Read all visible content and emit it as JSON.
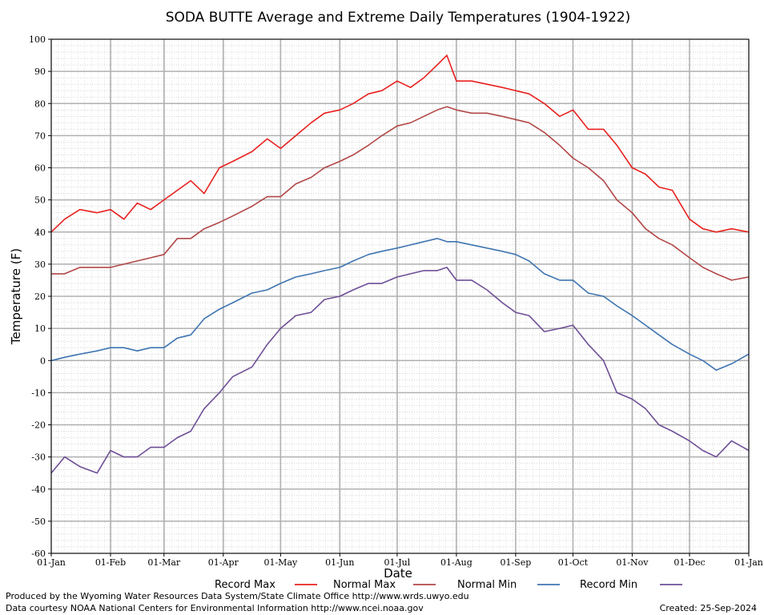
{
  "chart_data": {
    "type": "line",
    "title": "SODA BUTTE Average and Extreme Daily Temperatures (1904-1922)",
    "xlabel": "Date",
    "ylabel": "Temperature (F)",
    "ylim": [
      -60,
      100
    ],
    "y_ticks": [
      100,
      90,
      80,
      70,
      60,
      50,
      40,
      30,
      20,
      10,
      0,
      -10,
      -20,
      -30,
      -40,
      -50,
      -60
    ],
    "x_ticks": [
      {
        "label": "01-Jan",
        "day": 0
      },
      {
        "label": "01-Feb",
        "day": 31
      },
      {
        "label": "01-Mar",
        "day": 59
      },
      {
        "label": "01-Apr",
        "day": 90
      },
      {
        "label": "01-May",
        "day": 120
      },
      {
        "label": "01-Jun",
        "day": 151
      },
      {
        "label": "01-Jul",
        "day": 181
      },
      {
        "label": "01-Aug",
        "day": 212
      },
      {
        "label": "01-Sep",
        "day": 243
      },
      {
        "label": "01-Oct",
        "day": 273
      },
      {
        "label": "01-Nov",
        "day": 304
      },
      {
        "label": "01-Dec",
        "day": 334
      },
      {
        "label": "01-Jan",
        "day": 365
      }
    ],
    "grid": true,
    "legend_position": "bottom",
    "series": [
      {
        "name": "Record Max",
        "color": "#e8211f",
        "x": [
          0,
          7,
          15,
          24,
          31,
          38,
          45,
          52,
          59,
          66,
          73,
          80,
          88,
          95,
          105,
          113,
          120,
          128,
          136,
          143,
          151,
          158,
          166,
          173,
          181,
          188,
          195,
          202,
          207,
          212,
          220,
          228,
          236,
          243,
          250,
          258,
          266,
          273,
          281,
          289,
          296,
          304,
          311,
          318,
          325,
          334,
          341,
          348,
          356,
          365
        ],
        "y": [
          40,
          44,
          47,
          46,
          47,
          44,
          49,
          47,
          50,
          53,
          56,
          52,
          60,
          62,
          65,
          69,
          66,
          70,
          74,
          77,
          78,
          80,
          83,
          84,
          87,
          85,
          88,
          92,
          95,
          87,
          87,
          86,
          85,
          84,
          83,
          80,
          76,
          78,
          72,
          72,
          67,
          60,
          58,
          54,
          53,
          44,
          41,
          40,
          41,
          40
        ]
      },
      {
        "name": "Normal Max",
        "color": "#b24747",
        "x": [
          0,
          7,
          15,
          24,
          31,
          38,
          45,
          52,
          59,
          66,
          73,
          80,
          88,
          95,
          105,
          113,
          120,
          128,
          136,
          143,
          151,
          158,
          166,
          173,
          181,
          188,
          195,
          202,
          207,
          212,
          220,
          228,
          236,
          243,
          250,
          258,
          266,
          273,
          281,
          289,
          296,
          304,
          311,
          318,
          325,
          334,
          341,
          348,
          356,
          365
        ],
        "y": [
          27,
          27,
          29,
          29,
          29,
          30,
          31,
          32,
          33,
          38,
          38,
          41,
          43,
          45,
          48,
          51,
          51,
          55,
          57,
          60,
          62,
          64,
          67,
          70,
          73,
          74,
          76,
          78,
          79,
          78,
          77,
          77,
          76,
          75,
          74,
          71,
          67,
          63,
          60,
          56,
          50,
          46,
          41,
          38,
          36,
          32,
          29,
          27,
          25,
          26
        ]
      },
      {
        "name": "Normal Min",
        "color": "#3f75b1",
        "x": [
          0,
          7,
          15,
          24,
          31,
          38,
          45,
          52,
          59,
          66,
          73,
          80,
          88,
          95,
          105,
          113,
          120,
          128,
          136,
          143,
          151,
          158,
          166,
          173,
          181,
          188,
          195,
          202,
          207,
          212,
          220,
          228,
          236,
          243,
          250,
          258,
          266,
          273,
          281,
          289,
          296,
          304,
          311,
          318,
          325,
          334,
          341,
          348,
          356,
          365
        ],
        "y": [
          0,
          1,
          2,
          3,
          4,
          4,
          3,
          4,
          4,
          7,
          8,
          13,
          16,
          18,
          21,
          22,
          24,
          26,
          27,
          28,
          29,
          31,
          33,
          34,
          35,
          36,
          37,
          38,
          37,
          37,
          36,
          35,
          34,
          33,
          31,
          27,
          25,
          25,
          21,
          20,
          17,
          14,
          11,
          8,
          5,
          2,
          0,
          -3,
          -1,
          2
        ]
      },
      {
        "name": "Record Min",
        "color": "#6d4f97",
        "x": [
          0,
          7,
          15,
          24,
          31,
          38,
          45,
          52,
          59,
          66,
          73,
          80,
          88,
          95,
          105,
          113,
          120,
          128,
          136,
          143,
          151,
          158,
          166,
          173,
          181,
          188,
          195,
          202,
          207,
          212,
          220,
          228,
          236,
          243,
          250,
          258,
          266,
          273,
          281,
          289,
          296,
          304,
          311,
          318,
          325,
          334,
          341,
          348,
          356,
          365
        ],
        "y": [
          -35,
          -30,
          -33,
          -35,
          -28,
          -30,
          -30,
          -27,
          -27,
          -24,
          -22,
          -15,
          -10,
          -5,
          -2,
          5,
          10,
          14,
          15,
          19,
          20,
          22,
          24,
          24,
          26,
          27,
          28,
          28,
          29,
          25,
          25,
          22,
          18,
          15,
          14,
          9,
          10,
          11,
          5,
          0,
          -10,
          -12,
          -15,
          -20,
          -22,
          -25,
          -28,
          -30,
          -25,
          -28
        ]
      }
    ]
  },
  "legend": {
    "items": [
      {
        "label": "Record Max",
        "color": "#e8211f"
      },
      {
        "label": "Normal Max",
        "color": "#b24747"
      },
      {
        "label": "Normal Min",
        "color": "#3f75b1"
      },
      {
        "label": "Record Min",
        "color": "#6d4f97"
      }
    ]
  },
  "footer": {
    "produced_by": "Produced by the Wyoming Water Resources Data System/State Climate Office http://www.wrds.uwyo.edu",
    "data_courtesy": "Data courtesy NOAA National Centers for Environmental Information http://www.ncei.noaa.gov",
    "created": "Created:  25-Sep-2024"
  }
}
